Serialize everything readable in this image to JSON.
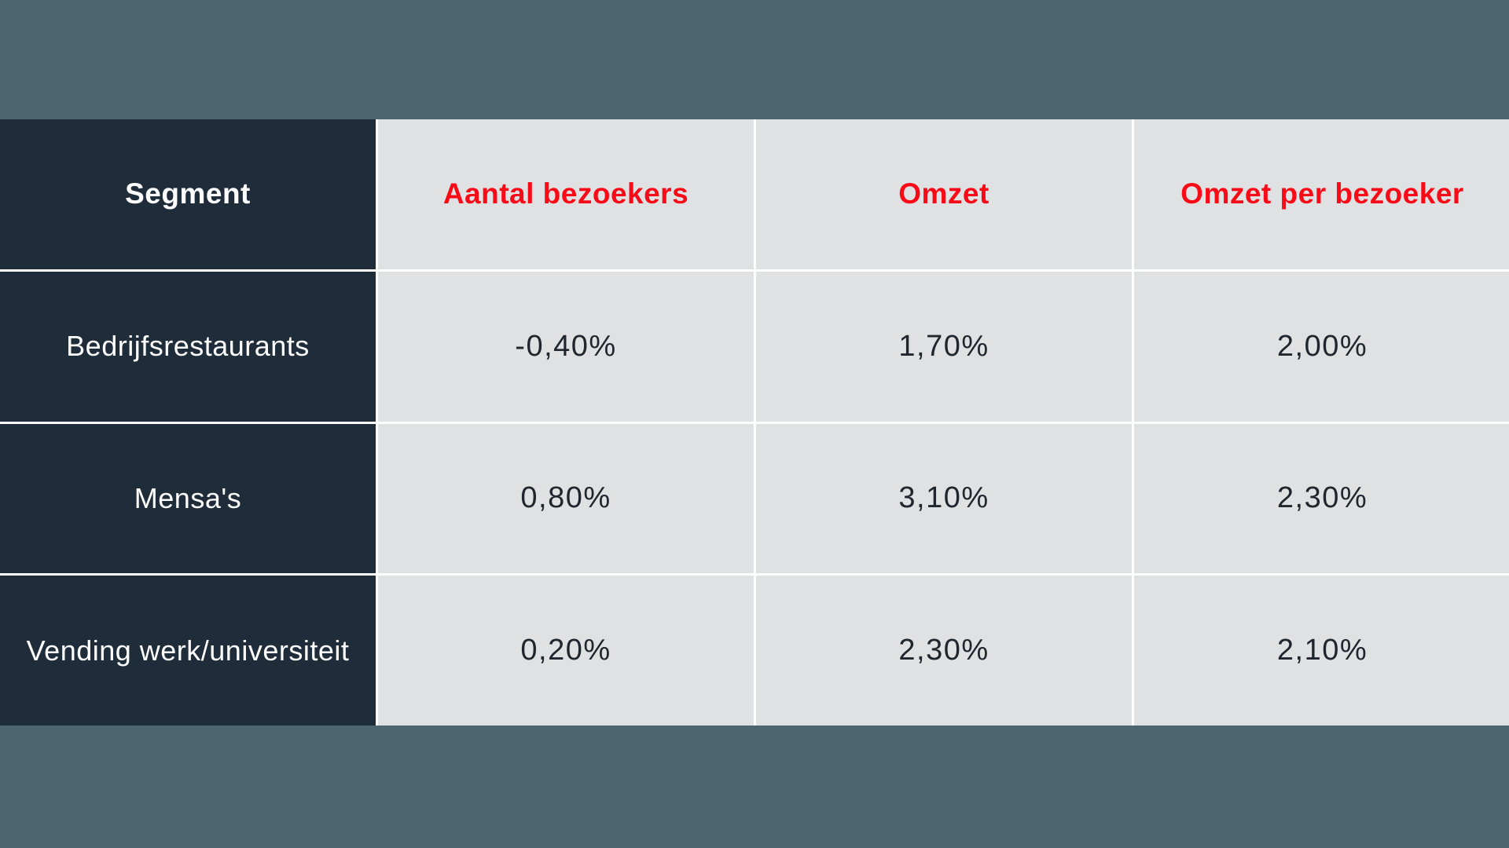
{
  "colors": {
    "page_background": "#4b666e",
    "segment_column_background": "#1f2c3a",
    "value_cell_background": "#e0e1e3",
    "header_accent_red": "#fa0a16",
    "segment_text": "#ffffff",
    "value_text": "#20262e",
    "separator": "#ffffff"
  },
  "table": {
    "columns": [
      {
        "label": "Segment"
      },
      {
        "label": "Aantal bezoekers"
      },
      {
        "label": "Omzet"
      },
      {
        "label": "Omzet per bezoeker"
      }
    ],
    "rows": [
      {
        "cells": [
          "Bedrijfsrestaurants",
          "-0,40%",
          "1,70%",
          "2,00%"
        ]
      },
      {
        "cells": [
          "Mensa's",
          "0,80%",
          "3,10%",
          "2,30%"
        ]
      },
      {
        "cells": [
          "Vending werk/universiteit",
          "0,20%",
          "2,30%",
          "2,10%"
        ]
      }
    ]
  },
  "chart_data": {
    "type": "table",
    "title": "",
    "columns": [
      "Segment",
      "Aantal bezoekers",
      "Omzet",
      "Omzet per bezoeker"
    ],
    "rows": [
      [
        "Bedrijfsrestaurants",
        "-0,40%",
        "1,70%",
        "2,00%"
      ],
      [
        "Mensa's",
        "0,80%",
        "3,10%",
        "2,30%"
      ],
      [
        "Vending werk/universiteit",
        "0,20%",
        "2,30%",
        "2,10%"
      ]
    ],
    "values_numeric_percent": {
      "Bedrijfsrestaurants": {
        "aantal_bezoekers": -0.4,
        "omzet": 1.7,
        "omzet_per_bezoeker": 2.0
      },
      "Mensa's": {
        "aantal_bezoekers": 0.8,
        "omzet": 3.1,
        "omzet_per_bezoeker": 2.3
      },
      "Vending werk/universiteit": {
        "aantal_bezoekers": 0.2,
        "omzet": 2.3,
        "omzet_per_bezoeker": 2.1
      }
    }
  }
}
